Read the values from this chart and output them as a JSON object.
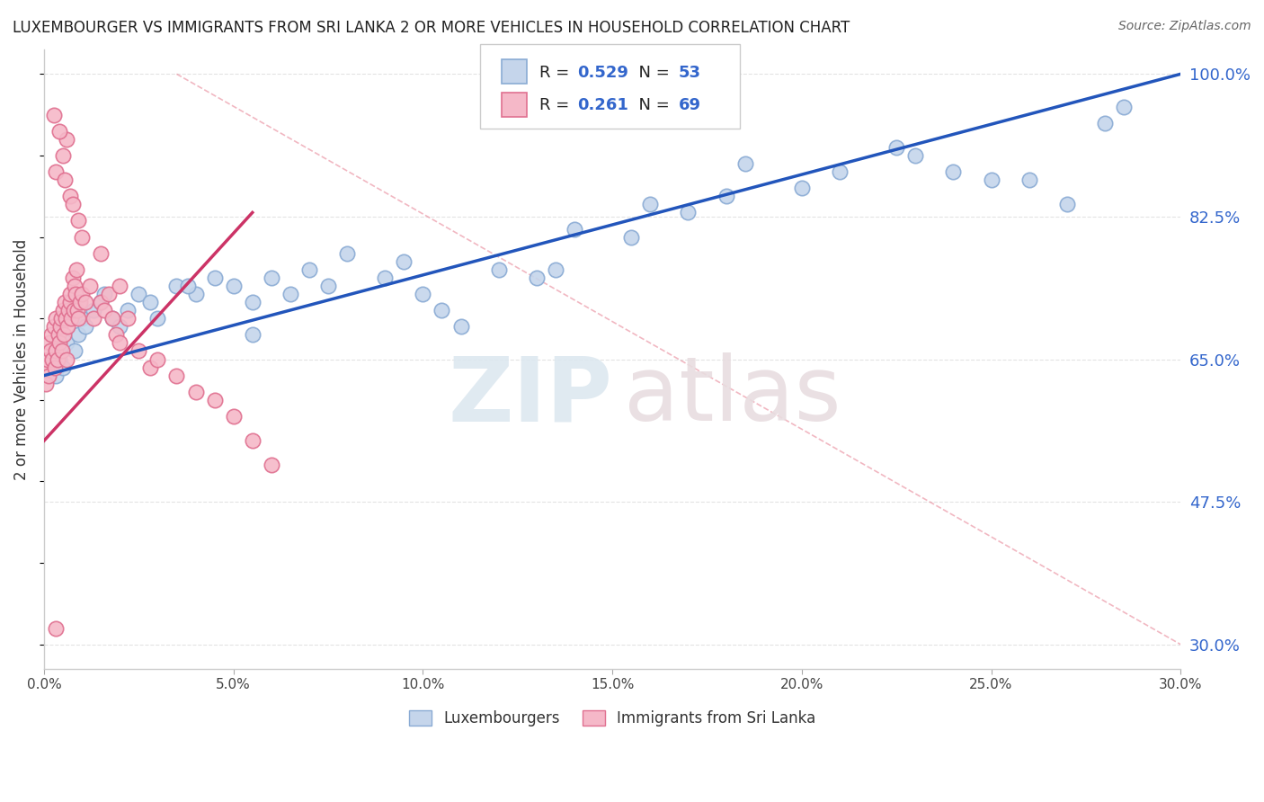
{
  "title": "LUXEMBOURGER VS IMMIGRANTS FROM SRI LANKA 2 OR MORE VEHICLES IN HOUSEHOLD CORRELATION CHART",
  "source": "Source: ZipAtlas.com",
  "ylabel": "2 or more Vehicles in Household",
  "legend_label_blue": "Luxembourgers",
  "legend_label_pink": "Immigrants from Sri Lanka",
  "R_blue": 0.529,
  "N_blue": 53,
  "R_pink": 0.261,
  "N_pink": 69,
  "xlim": [
    0.0,
    30.0
  ],
  "ylim": [
    27.0,
    103.0
  ],
  "yticks": [
    30.0,
    47.5,
    65.0,
    82.5,
    100.0
  ],
  "xticks": [
    0.0,
    5.0,
    10.0,
    15.0,
    20.0,
    25.0,
    30.0
  ],
  "color_blue_fill": "#c5d5eb",
  "color_blue_edge": "#8aabd4",
  "color_blue_line": "#2255bb",
  "color_pink_fill": "#f5b8c8",
  "color_pink_edge": "#e07090",
  "color_pink_line": "#cc3366",
  "color_diag": "#e88899",
  "background": "#ffffff",
  "blue_trend_x0": 0.0,
  "blue_trend_y0": 63.0,
  "blue_trend_x1": 30.0,
  "blue_trend_y1": 100.0,
  "pink_trend_x0": 0.0,
  "pink_trend_y0": 55.0,
  "pink_trend_x1": 5.5,
  "pink_trend_y1": 83.0,
  "diag_x0": 3.5,
  "diag_y0": 100.0,
  "diag_x1": 30.0,
  "diag_y1": 30.0,
  "blue_x": [
    0.3,
    0.4,
    0.5,
    0.6,
    0.8,
    0.9,
    1.0,
    1.1,
    1.3,
    1.5,
    1.6,
    1.8,
    2.0,
    2.2,
    2.5,
    2.8,
    3.0,
    3.5,
    4.0,
    4.5,
    5.0,
    5.5,
    6.0,
    6.5,
    7.0,
    7.5,
    8.0,
    9.0,
    10.0,
    11.0,
    12.0,
    13.0,
    14.0,
    15.5,
    16.0,
    17.0,
    18.5,
    20.0,
    21.0,
    22.5,
    24.0,
    25.0,
    26.0,
    27.0,
    28.0,
    28.5,
    3.8,
    5.5,
    9.5,
    13.5,
    18.0,
    23.0,
    10.5
  ],
  "blue_y": [
    63,
    65,
    64,
    67,
    66,
    68,
    70,
    69,
    71,
    72,
    73,
    70,
    69,
    71,
    73,
    72,
    70,
    74,
    73,
    75,
    74,
    72,
    75,
    73,
    76,
    74,
    78,
    75,
    73,
    69,
    76,
    75,
    81,
    80,
    84,
    83,
    89,
    86,
    88,
    91,
    88,
    87,
    87,
    84,
    94,
    96,
    74,
    68,
    77,
    76,
    85,
    90,
    71
  ],
  "pink_x": [
    0.05,
    0.08,
    0.1,
    0.12,
    0.15,
    0.17,
    0.2,
    0.22,
    0.25,
    0.28,
    0.3,
    0.32,
    0.35,
    0.38,
    0.4,
    0.42,
    0.45,
    0.48,
    0.5,
    0.52,
    0.55,
    0.58,
    0.6,
    0.62,
    0.65,
    0.68,
    0.7,
    0.72,
    0.75,
    0.78,
    0.8,
    0.82,
    0.85,
    0.88,
    0.9,
    0.95,
    1.0,
    1.1,
    1.2,
    1.3,
    1.5,
    1.6,
    1.7,
    1.8,
    1.9,
    2.0,
    2.2,
    2.5,
    2.8,
    3.0,
    3.5,
    4.0,
    4.5,
    5.0,
    5.5,
    6.0,
    1.0,
    0.3,
    0.5,
    0.6,
    0.7,
    0.9,
    1.5,
    2.0,
    0.25,
    0.4,
    0.55,
    0.75,
    0.3
  ],
  "pink_y": [
    62,
    64,
    65,
    63,
    67,
    66,
    68,
    65,
    69,
    64,
    70,
    66,
    65,
    68,
    67,
    69,
    70,
    66,
    71,
    68,
    72,
    70,
    65,
    69,
    71,
    72,
    73,
    70,
    75,
    71,
    74,
    73,
    76,
    71,
    70,
    72,
    73,
    72,
    74,
    70,
    72,
    71,
    73,
    70,
    68,
    67,
    70,
    66,
    64,
    65,
    63,
    61,
    60,
    58,
    55,
    52,
    80,
    88,
    90,
    92,
    85,
    82,
    78,
    74,
    95,
    93,
    87,
    84,
    32
  ],
  "watermark_zip_color": "#dde8f0",
  "watermark_atlas_color": "#e8dde0",
  "grid_color": "#dddddd"
}
